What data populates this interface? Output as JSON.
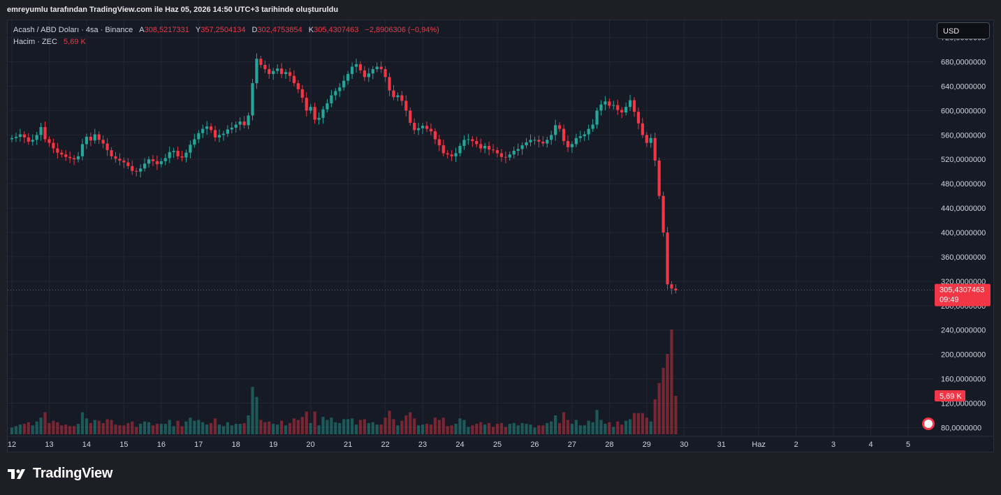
{
  "header": {
    "attribution": "emreyumlu tarafından TradingView.com ile Haz 05, 2026 14:50 UTC+3 tarihinde oluşturuldu"
  },
  "legend": {
    "symbol": "Acash / ABD Doları · 4sa · Binance",
    "open_label": "A",
    "open_value": "308,5217331",
    "high_label": "Y",
    "high_value": "357,2504134",
    "low_label": "D",
    "low_value": "302,4753854",
    "close_label": "K",
    "close_value": "305,4307463",
    "change": "−2,8906306 (−0,94%)",
    "volume_label": "Hacim · ZEC",
    "volume_value": "5,69 K"
  },
  "currency_button": "USD",
  "brand": {
    "name": "TradingView",
    "logo_icon": "tradingview-logo-icon"
  },
  "colors": {
    "up": "#26a69a",
    "down": "#f23645",
    "background": "#161a25",
    "grid": "#222633",
    "text": "#d1d4dc"
  },
  "chart_data": {
    "type": "candlestick",
    "y_axis": {
      "position": "right",
      "min": 77,
      "max": 715,
      "ticks": [
        {
          "v": 80,
          "label": "80,0000000"
        },
        {
          "v": 120,
          "label": "120,0000000"
        },
        {
          "v": 160,
          "label": "160,0000000"
        },
        {
          "v": 200,
          "label": "200,0000000"
        },
        {
          "v": 240,
          "label": "240,0000000"
        },
        {
          "v": 280,
          "label": "280,0000000"
        },
        {
          "v": 320,
          "label": "320,0000000"
        },
        {
          "v": 360,
          "label": "360,0000000"
        },
        {
          "v": 400,
          "label": "400,0000000"
        },
        {
          "v": 440,
          "label": "440,0000000"
        },
        {
          "v": 480,
          "label": "480,0000000"
        },
        {
          "v": 520,
          "label": "520,0000000"
        },
        {
          "v": 560,
          "label": "560,0000000"
        },
        {
          "v": 600,
          "label": "600,0000000"
        },
        {
          "v": 640,
          "label": "640,0000000"
        },
        {
          "v": 680,
          "label": "680,0000000"
        },
        {
          "v": 720,
          "label": "720,0000000"
        }
      ]
    },
    "x_axis": {
      "ticks": [
        {
          "i": 0,
          "label": "12"
        },
        {
          "i": 9,
          "label": "13"
        },
        {
          "i": 18,
          "label": "14"
        },
        {
          "i": 27,
          "label": "15"
        },
        {
          "i": 36,
          "label": "16"
        },
        {
          "i": 45,
          "label": "17"
        },
        {
          "i": 54,
          "label": "18"
        },
        {
          "i": 63,
          "label": "19"
        },
        {
          "i": 72,
          "label": "20"
        },
        {
          "i": 81,
          "label": "21"
        },
        {
          "i": 90,
          "label": "22"
        },
        {
          "i": 99,
          "label": "23"
        },
        {
          "i": 108,
          "label": "24"
        },
        {
          "i": 117,
          "label": "25"
        },
        {
          "i": 126,
          "label": "26"
        },
        {
          "i": 135,
          "label": "27"
        },
        {
          "i": 144,
          "label": "28"
        },
        {
          "i": 153,
          "label": "29"
        },
        {
          "i": 162,
          "label": "30"
        },
        {
          "i": 171,
          "label": "31"
        },
        {
          "i": 180,
          "label": "Haz"
        },
        {
          "i": 189,
          "label": "2"
        },
        {
          "i": 198,
          "label": "3"
        },
        {
          "i": 207,
          "label": "4"
        },
        {
          "i": 216,
          "label": "5"
        }
      ]
    },
    "closes": [
      555,
      557,
      561,
      556,
      549,
      552,
      560,
      573,
      553,
      547,
      538,
      531,
      528,
      524,
      522,
      520,
      525,
      545,
      557,
      551,
      561,
      552,
      546,
      535,
      525,
      521,
      518,
      515,
      509,
      501,
      500,
      505,
      513,
      520,
      517,
      512,
      517,
      522,
      532,
      534,
      525,
      523,
      531,
      544,
      553,
      563,
      570,
      574,
      568,
      556,
      560,
      562,
      569,
      572,
      577,
      582,
      576,
      592,
      645,
      685,
      675,
      668,
      660,
      665,
      669,
      660,
      663,
      657,
      645,
      635,
      621,
      600,
      606,
      585,
      588,
      602,
      612,
      625,
      632,
      638,
      649,
      660,
      672,
      676,
      666,
      655,
      661,
      668,
      672,
      668,
      655,
      633,
      622,
      625,
      616,
      600,
      580,
      568,
      571,
      575,
      570,
      566,
      553,
      543,
      530,
      528,
      525,
      530,
      542,
      552,
      553,
      550,
      545,
      538,
      542,
      536,
      535,
      530,
      524,
      523,
      528,
      534,
      537,
      543,
      548,
      552,
      552,
      549,
      546,
      552,
      560,
      576,
      570,
      550,
      540,
      545,
      555,
      558,
      561,
      570,
      577,
      600,
      610,
      615,
      608,
      609,
      601,
      597,
      606,
      617,
      598,
      579,
      560,
      547,
      555,
      518,
      460,
      400,
      315,
      308,
      305
    ],
    "range_start": 5,
    "volume_min": 75,
    "volume_max": 720,
    "last_price": {
      "value": 305.4307463,
      "label": "305,4307463",
      "countdown": "09:49"
    },
    "last_volume": {
      "value": 5690,
      "label": "5,69 K"
    }
  }
}
